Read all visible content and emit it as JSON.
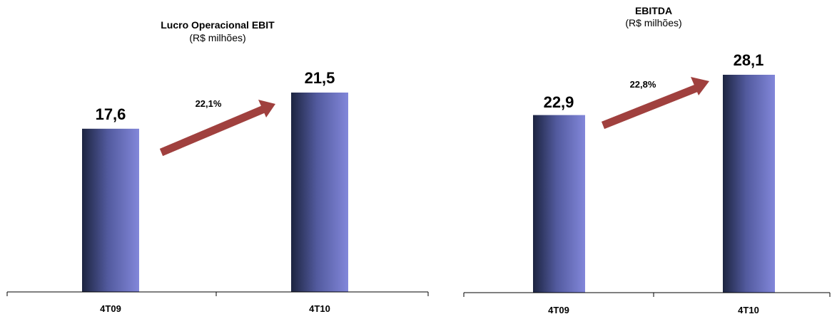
{
  "chart_data": [
    {
      "type": "bar",
      "title": "Lucro Operacional EBIT",
      "subtitle": "(R$ milhões)",
      "categories": [
        "4T09",
        "4T10"
      ],
      "values": [
        17.6,
        21.5
      ],
      "value_labels": [
        "17,6",
        "21,5"
      ],
      "growth_label": "22,1%",
      "ylim": [
        0,
        25
      ],
      "grid": false,
      "bar_color": "#7b7fd0",
      "arrow_color": "#a0403e"
    },
    {
      "type": "bar",
      "title": "EBITDA",
      "subtitle": "(R$ milhões)",
      "categories": [
        "4T09",
        "4T10"
      ],
      "values": [
        22.9,
        28.1
      ],
      "value_labels": [
        "22,9",
        "28,1"
      ],
      "growth_label": "22,8%",
      "ylim": [
        0,
        32
      ],
      "grid": false,
      "bar_color": "#7b7fd0",
      "arrow_color": "#a0403e"
    }
  ]
}
